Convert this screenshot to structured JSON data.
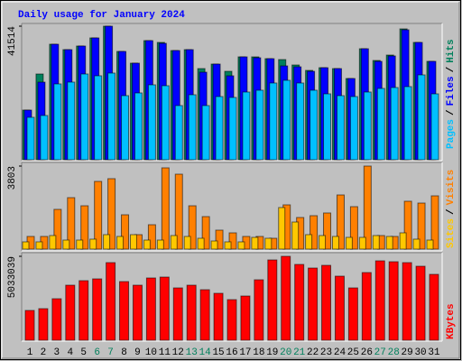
{
  "separator": "/",
  "chart_data": [
    {
      "type": "bar",
      "title": "Daily usage for January 2024",
      "ylim": [
        0,
        41514
      ],
      "yticks": [
        41514
      ],
      "series": [
        {
          "name": "Hits",
          "color": "#00805c",
          "values": [
            15428,
            26648,
            35904,
            34221,
            35343,
            37868,
            41514,
            33660,
            30014,
            37026,
            36465,
            33941,
            34221,
            28331,
            29733,
            27489,
            31977,
            31977,
            31416,
            31136,
            29453,
            27770,
            28611,
            28331,
            25245,
            34502,
            30855,
            32538,
            40673,
            36465,
            30575
          ]
        },
        {
          "name": "Files",
          "color": "#0000ff",
          "values": [
            15428,
            24123,
            35904,
            34221,
            35343,
            37868,
            41514,
            33660,
            30014,
            37026,
            36185,
            33941,
            34221,
            27209,
            29733,
            26087,
            31977,
            31697,
            31416,
            29172,
            28892,
            27489,
            28611,
            28331,
            25245,
            34502,
            30575,
            32258,
            40392,
            36465,
            30575
          ]
        },
        {
          "name": "Pages",
          "color": "#00c0ff",
          "values": [
            13184,
            13745,
            23562,
            24123,
            26648,
            26087,
            26928,
            19916,
            20757,
            23282,
            23001,
            16830,
            20196,
            16830,
            19635,
            19355,
            21038,
            21599,
            23843,
            24684,
            23843,
            21599,
            20477,
            19916,
            19635,
            21038,
            22160,
            22440,
            22721,
            26367,
            20477
          ]
        }
      ]
    },
    {
      "type": "bar",
      "ylim": [
        0,
        3803
      ],
      "yticks": [
        3803
      ],
      "series": [
        {
          "name": "Visits",
          "color": "#ff8000",
          "values": [
            579,
            579,
            1819,
            2356,
            1984,
            3100,
            3225,
            1571,
            661,
            1116,
            3721,
            3431,
            1984,
            1488,
            868,
            744,
            579,
            579,
            496,
            2026,
            1447,
            1530,
            1654,
            2480,
            1943,
            3803,
            620,
            579,
            2191,
            2108,
            2439
          ]
        },
        {
          "name": "Sites",
          "color": "#ffc800",
          "values": [
            331,
            331,
            620,
            413,
            413,
            455,
            661,
            579,
            661,
            413,
            413,
            620,
            579,
            496,
            372,
            331,
            331,
            537,
            496,
            1902,
            1240,
            661,
            620,
            579,
            537,
            537,
            620,
            579,
            744,
            455,
            413
          ]
        }
      ]
    },
    {
      "type": "bar",
      "ylim": [
        0,
        5033039
      ],
      "yticks": [
        5033039
      ],
      "categories": [
        "1",
        "2",
        "3",
        "4",
        "5",
        "6",
        "7",
        "8",
        "9",
        "10",
        "11",
        "12",
        "13",
        "14",
        "15",
        "16",
        "17",
        "18",
        "19",
        "20",
        "21",
        "22",
        "23",
        "24",
        "25",
        "26",
        "27",
        "28",
        "29",
        "30",
        "31"
      ],
      "category_colors": [
        "#000000",
        "#000000",
        "#000000",
        "#000000",
        "#000000",
        "#00805c",
        "#00805c",
        "#000000",
        "#000000",
        "#000000",
        "#000000",
        "#000000",
        "#00805c",
        "#00805c",
        "#000000",
        "#000000",
        "#000000",
        "#000000",
        "#000000",
        "#00805c",
        "#00805c",
        "#000000",
        "#000000",
        "#000000",
        "#000000",
        "#000000",
        "#00805c",
        "#00805c",
        "#000000",
        "#000000",
        "#000000"
      ],
      "series": [
        {
          "name": "KBytes",
          "color": "#ff0000",
          "values": [
            1785927,
            1894165,
            2489474,
            3301259,
            3571854,
            3680092,
            4654234,
            3517735,
            3301259,
            3734211,
            3788330,
            3138902,
            3301259,
            3030664,
            2814188,
            2435355,
            2651831,
            3625973,
            4816591,
            5033039,
            4545996,
            4329520,
            4491877,
            3842449,
            3138902,
            4058925,
            4762472,
            4708353,
            4654234,
            4437758,
            3950687
          ]
        }
      ]
    }
  ]
}
